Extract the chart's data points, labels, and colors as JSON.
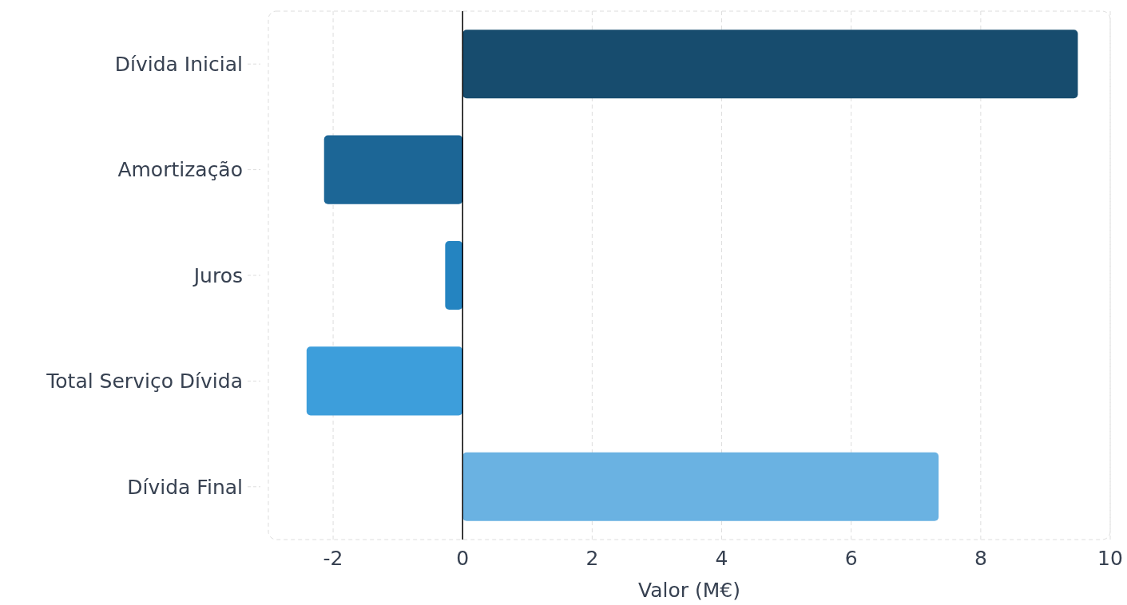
{
  "chart_data": {
    "type": "bar",
    "orientation": "horizontal",
    "xlabel": "Valor (M€)",
    "categories": [
      "Dívida Inicial",
      "Amortização",
      "Juros",
      "Total Serviço Dívida",
      "Dívida Final"
    ],
    "values": [
      9.5,
      -2.14,
      -0.27,
      -2.41,
      7.35
    ],
    "colors": [
      "#174c6e",
      "#1c6696",
      "#2484c1",
      "#3d9edb",
      "#6ab2e2"
    ],
    "xlim": [
      -3,
      10
    ],
    "xticks": [
      -2,
      0,
      2,
      4,
      6,
      8,
      10
    ],
    "grid": "x",
    "ref_lines": [
      {
        "axis": "x",
        "value": 0,
        "color": "#000000",
        "line_style": "solid"
      }
    ]
  }
}
